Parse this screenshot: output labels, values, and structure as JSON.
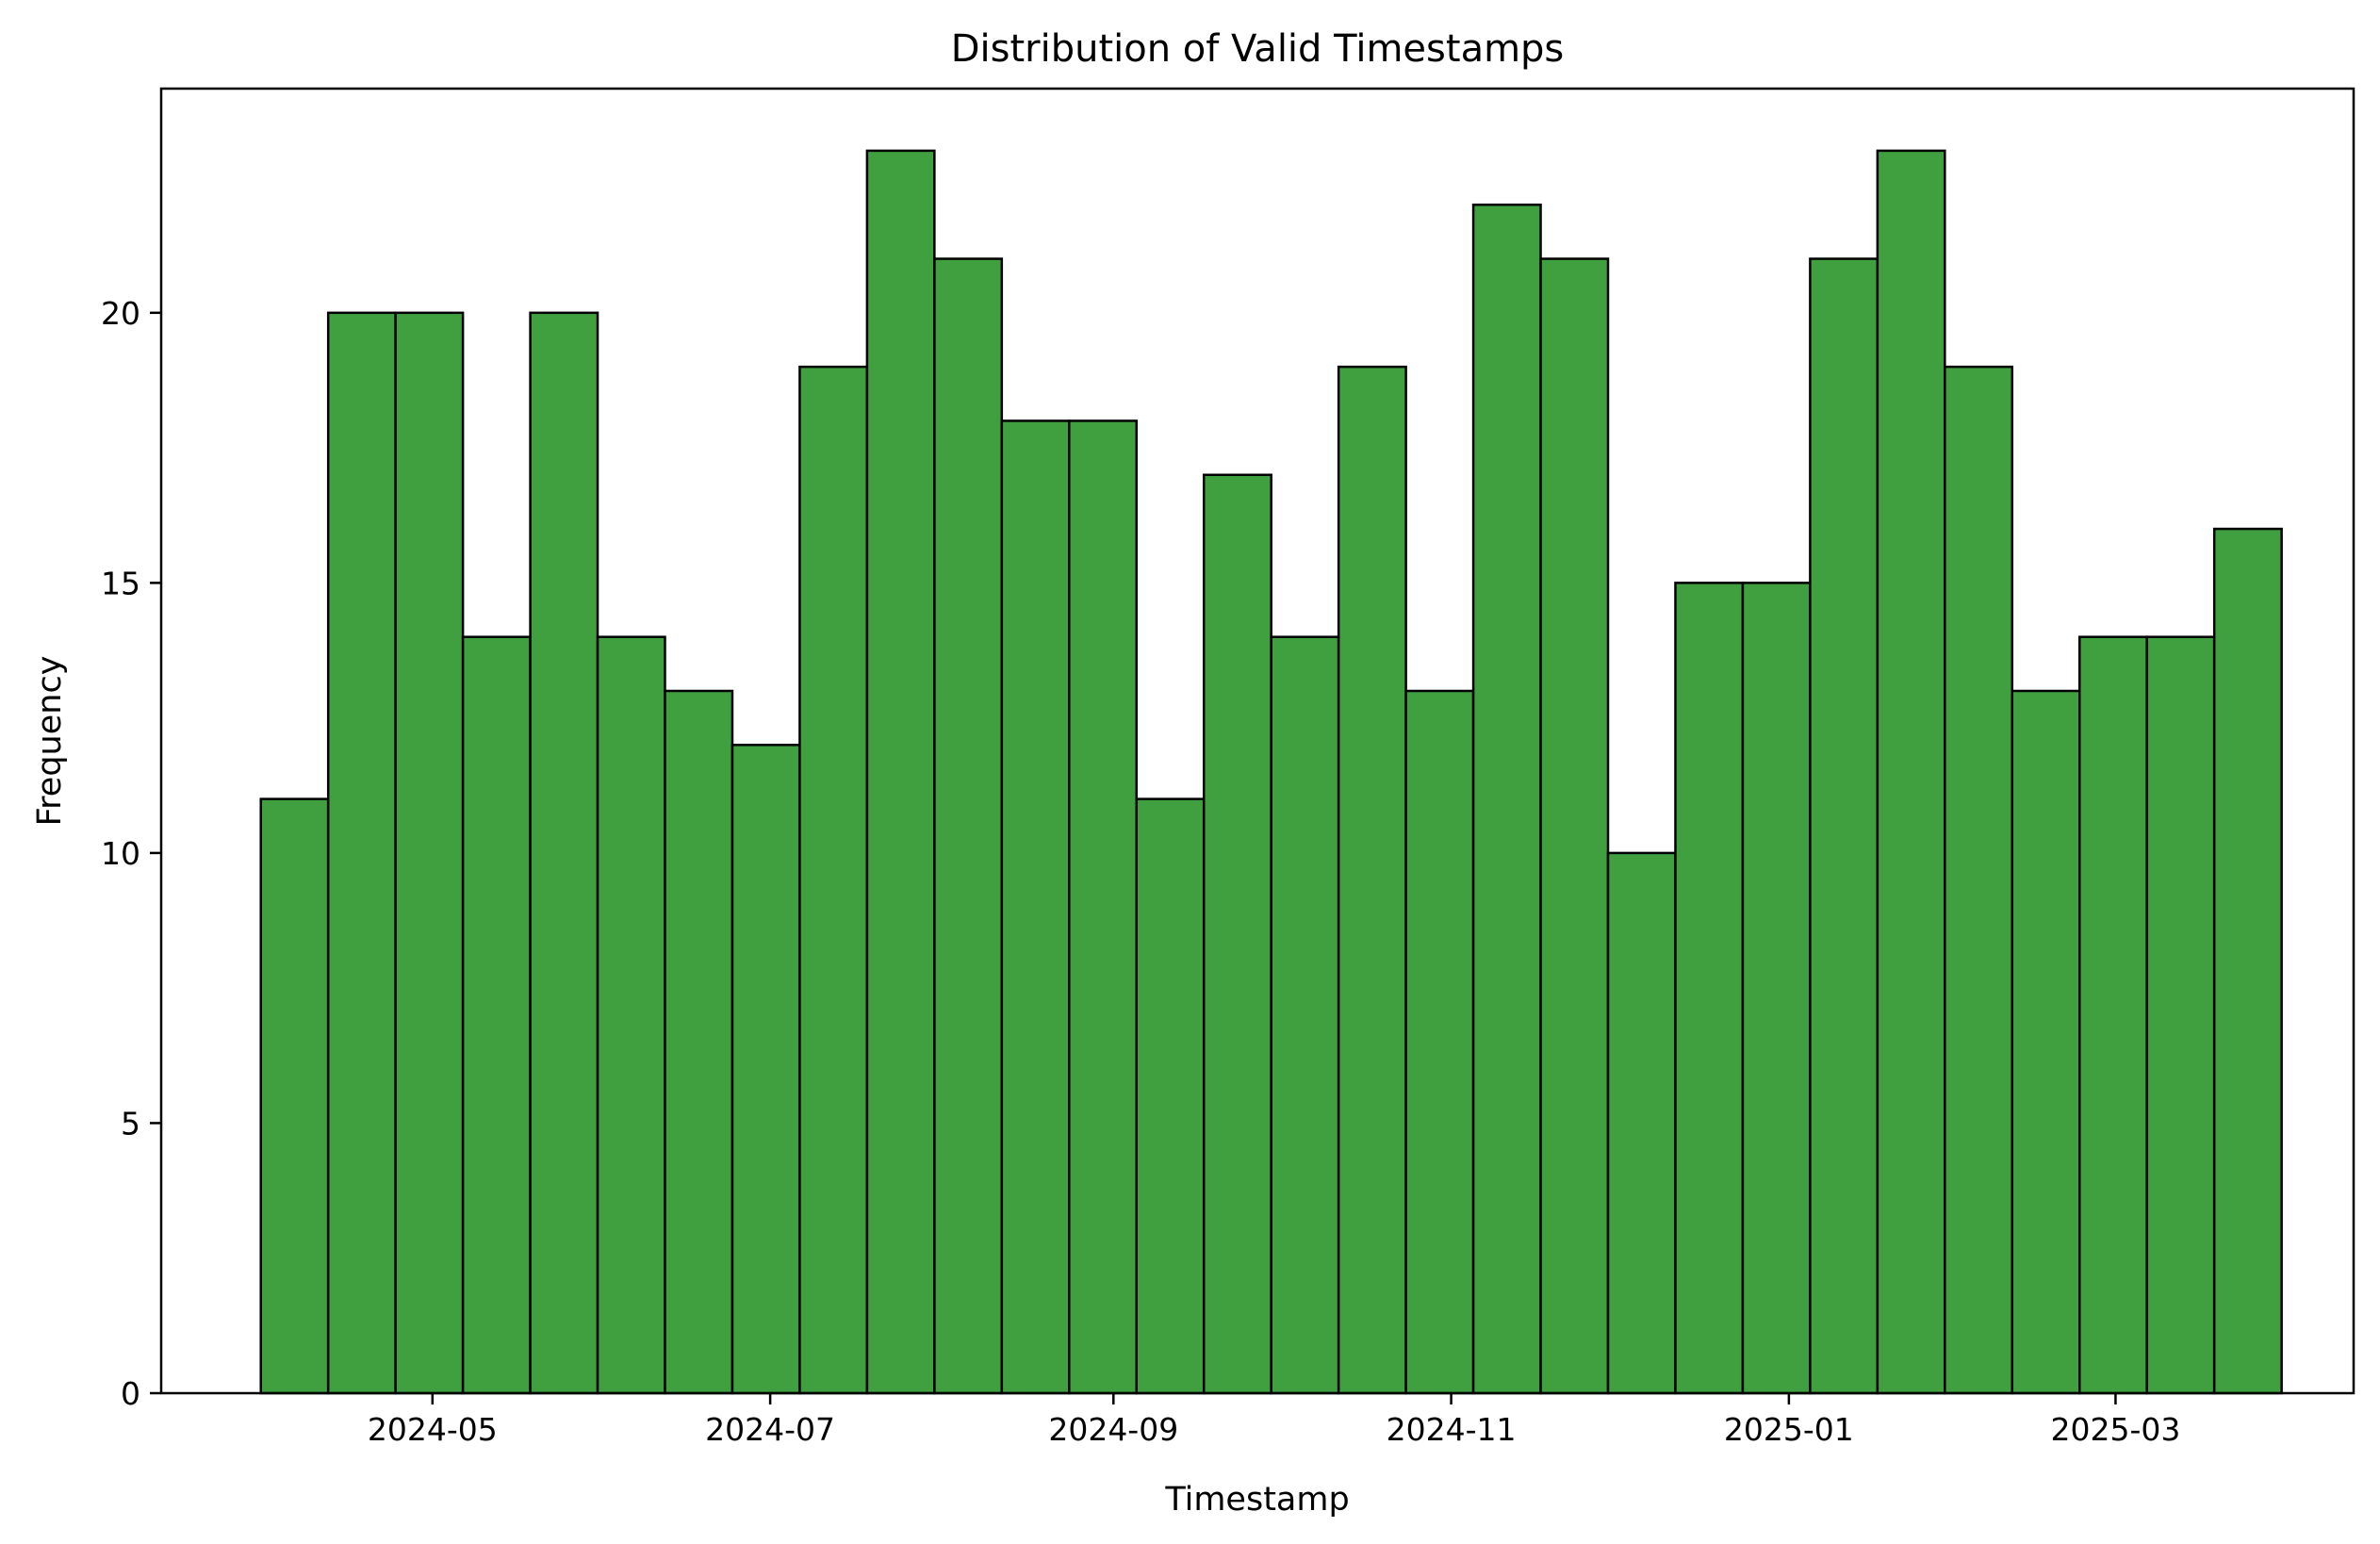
{
  "chart_data": {
    "type": "bar",
    "subtype": "histogram",
    "title": "Distribution of Valid Timestamps",
    "xlabel": "Timestamp",
    "ylabel": "Frequency",
    "x_axis_type": "date",
    "xlim": [
      "2024-03-13",
      "2025-04-13"
    ],
    "ylim": [
      0,
      24.15
    ],
    "xticks": [
      "2024-05",
      "2024-07",
      "2024-09",
      "2024-11",
      "2025-01",
      "2025-03"
    ],
    "yticks": [
      0,
      5,
      10,
      15,
      20
    ],
    "bin_start": "2024-03-31",
    "bin_end": "2025-03-31",
    "bins": 30,
    "values": [
      11,
      20,
      20,
      14,
      20,
      14,
      13,
      12,
      19,
      23,
      21,
      18,
      18,
      11,
      17,
      14,
      19,
      13,
      22,
      21,
      10,
      15,
      15,
      21,
      23,
      19,
      13,
      14,
      14,
      16
    ],
    "bar_color": "#40a040",
    "edge_color": "#000000",
    "grid": false,
    "legend": "none"
  }
}
